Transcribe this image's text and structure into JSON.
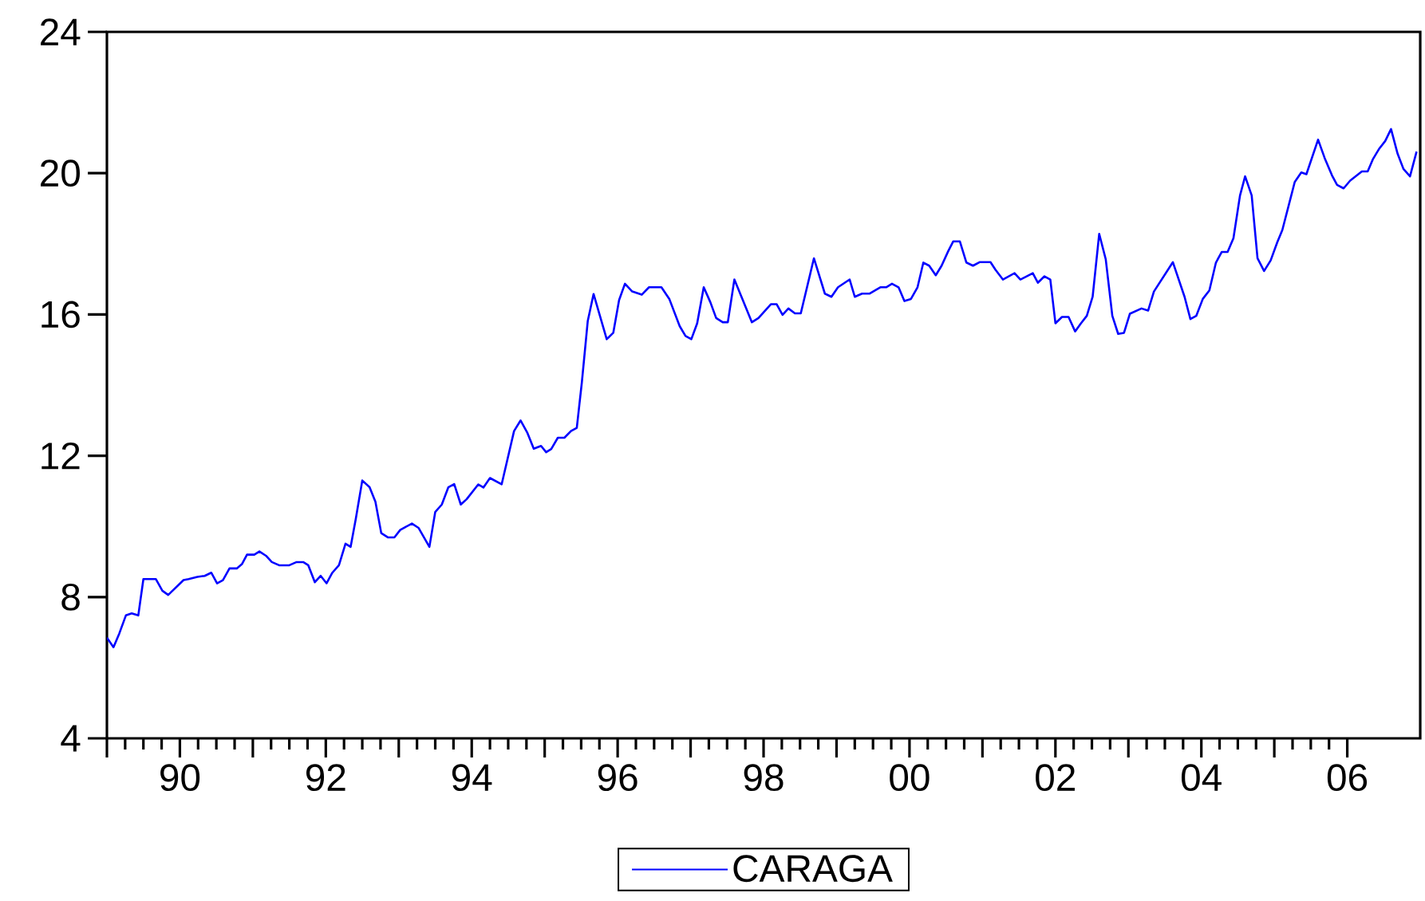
{
  "chart_data": {
    "type": "line",
    "xlim": [
      1989,
      2007
    ],
    "ylim": [
      4,
      24
    ],
    "yticks": [
      4,
      8,
      12,
      16,
      20,
      24
    ],
    "xticks": [
      {
        "value": 1989,
        "label": null
      },
      {
        "value": 1990,
        "label": "90"
      },
      {
        "value": 1991,
        "label": null
      },
      {
        "value": 1992,
        "label": "92"
      },
      {
        "value": 1993,
        "label": null
      },
      {
        "value": 1994,
        "label": "94"
      },
      {
        "value": 1995,
        "label": null
      },
      {
        "value": 1996,
        "label": "96"
      },
      {
        "value": 1997,
        "label": null
      },
      {
        "value": 1998,
        "label": "98"
      },
      {
        "value": 1999,
        "label": null
      },
      {
        "value": 2000,
        "label": "00"
      },
      {
        "value": 2001,
        "label": null
      },
      {
        "value": 2002,
        "label": "02"
      },
      {
        "value": 2003,
        "label": null
      },
      {
        "value": 2004,
        "label": "04"
      },
      {
        "value": 2005,
        "label": null
      },
      {
        "value": 2006,
        "label": "06"
      }
    ],
    "legend": "bottom",
    "series": [
      {
        "name": "CARAGA",
        "color": "#0000ff",
        "x": [
          1989.0,
          1989.09,
          1989.17,
          1989.26,
          1989.34,
          1989.43,
          1989.5,
          1989.67,
          1989.76,
          1989.84,
          1990.05,
          1990.12,
          1990.24,
          1990.34,
          1990.43,
          1990.51,
          1990.59,
          1990.68,
          1990.78,
          1990.85,
          1990.92,
          1991.02,
          1991.09,
          1991.18,
          1991.26,
          1991.36,
          1991.5,
          1991.6,
          1991.69,
          1991.76,
          1991.85,
          1991.93,
          1992.01,
          1992.09,
          1992.18,
          1992.27,
          1992.34,
          1992.41,
          1992.5,
          1992.6,
          1992.68,
          1992.76,
          1992.85,
          1992.94,
          1993.02,
          1993.18,
          1993.27,
          1993.42,
          1993.5,
          1993.59,
          1993.68,
          1993.76,
          1993.85,
          1993.93,
          1994.09,
          1994.16,
          1994.25,
          1994.41,
          1994.58,
          1994.67,
          1994.76,
          1994.85,
          1994.95,
          1995.02,
          1995.09,
          1995.18,
          1995.27,
          1995.36,
          1995.44,
          1995.51,
          1995.59,
          1995.67,
          1995.85,
          1995.94,
          1996.02,
          1996.1,
          1996.2,
          1996.33,
          1996.43,
          1996.6,
          1996.71,
          1996.85,
          1996.93,
          1997.01,
          1997.09,
          1997.18,
          1997.27,
          1997.35,
          1997.44,
          1997.51,
          1997.6,
          1997.84,
          1997.93,
          1998.1,
          1998.18,
          1998.26,
          1998.34,
          1998.43,
          1998.51,
          1998.69,
          1998.84,
          1998.93,
          1999.02,
          1999.18,
          1999.25,
          1999.35,
          1999.45,
          1999.6,
          1999.68,
          1999.76,
          1999.85,
          1999.93,
          2000.02,
          2000.11,
          2000.19,
          2000.27,
          2000.36,
          2000.44,
          2000.53,
          2000.6,
          2000.69,
          2000.78,
          2000.87,
          2000.96,
          2001.11,
          2001.18,
          2001.28,
          2001.44,
          2001.52,
          2001.69,
          2001.76,
          2001.85,
          2001.93,
          2002.0,
          2002.09,
          2002.18,
          2002.27,
          2002.35,
          2002.43,
          2002.51,
          2002.6,
          2002.69,
          2002.78,
          2002.86,
          2002.94,
          2003.02,
          2003.18,
          2003.27,
          2003.35,
          2003.61,
          2003.77,
          2003.85,
          2003.93,
          2004.02,
          2004.11,
          2004.2,
          2004.28,
          2004.36,
          2004.44,
          2004.53,
          2004.6,
          2004.69,
          2004.77,
          2004.86,
          2004.95,
          2005.04,
          2005.11,
          2005.21,
          2005.28,
          2005.37,
          2005.44,
          2005.6,
          2005.69,
          2005.79,
          2005.86,
          2005.95,
          2006.04,
          2006.2,
          2006.28,
          2006.35,
          2006.44,
          2006.52,
          2006.6,
          2006.69,
          2006.77,
          2006.86,
          2006.95
        ],
        "values": [
          6.85,
          6.58,
          6.97,
          7.48,
          7.54,
          7.48,
          8.51,
          8.51,
          8.18,
          8.06,
          8.48,
          8.51,
          8.57,
          8.6,
          8.69,
          8.39,
          8.48,
          8.81,
          8.81,
          8.93,
          9.2,
          9.2,
          9.29,
          9.17,
          8.99,
          8.9,
          8.9,
          8.99,
          8.99,
          8.9,
          8.42,
          8.6,
          8.39,
          8.69,
          8.9,
          9.51,
          9.42,
          10.2,
          11.3,
          11.11,
          10.7,
          9.81,
          9.69,
          9.69,
          9.9,
          10.08,
          9.96,
          9.42,
          10.41,
          10.62,
          11.11,
          11.2,
          10.62,
          10.77,
          11.19,
          11.1,
          11.37,
          11.19,
          12.7,
          13.0,
          12.66,
          12.2,
          12.28,
          12.1,
          12.19,
          12.51,
          12.51,
          12.7,
          12.79,
          14.09,
          15.81,
          16.58,
          15.3,
          15.48,
          16.41,
          16.87,
          16.65,
          16.56,
          16.77,
          16.77,
          16.43,
          15.67,
          15.39,
          15.3,
          15.75,
          16.77,
          16.35,
          15.9,
          15.78,
          15.78,
          16.99,
          15.78,
          15.9,
          16.29,
          16.29,
          15.99,
          16.17,
          16.03,
          16.03,
          17.59,
          16.59,
          16.5,
          16.77,
          16.99,
          16.5,
          16.59,
          16.59,
          16.77,
          16.77,
          16.87,
          16.77,
          16.38,
          16.44,
          16.77,
          17.47,
          17.38,
          17.11,
          17.38,
          17.79,
          18.07,
          18.07,
          17.47,
          17.38,
          17.48,
          17.48,
          17.26,
          16.99,
          17.17,
          16.99,
          17.17,
          16.9,
          17.08,
          16.99,
          15.75,
          15.93,
          15.93,
          15.52,
          15.75,
          15.96,
          16.5,
          18.28,
          17.56,
          15.96,
          15.45,
          15.48,
          16.02,
          16.17,
          16.11,
          16.65,
          17.48,
          16.5,
          15.87,
          15.96,
          16.44,
          16.68,
          17.47,
          17.77,
          17.77,
          18.16,
          19.37,
          19.91,
          19.37,
          17.59,
          17.23,
          17.53,
          18.04,
          18.39,
          19.19,
          19.75,
          20.02,
          19.97,
          20.95,
          20.43,
          19.94,
          19.67,
          19.57,
          19.79,
          20.05,
          20.05,
          20.39,
          20.7,
          20.91,
          21.25,
          20.55,
          20.12,
          19.91,
          20.61
        ]
      }
    ]
  }
}
